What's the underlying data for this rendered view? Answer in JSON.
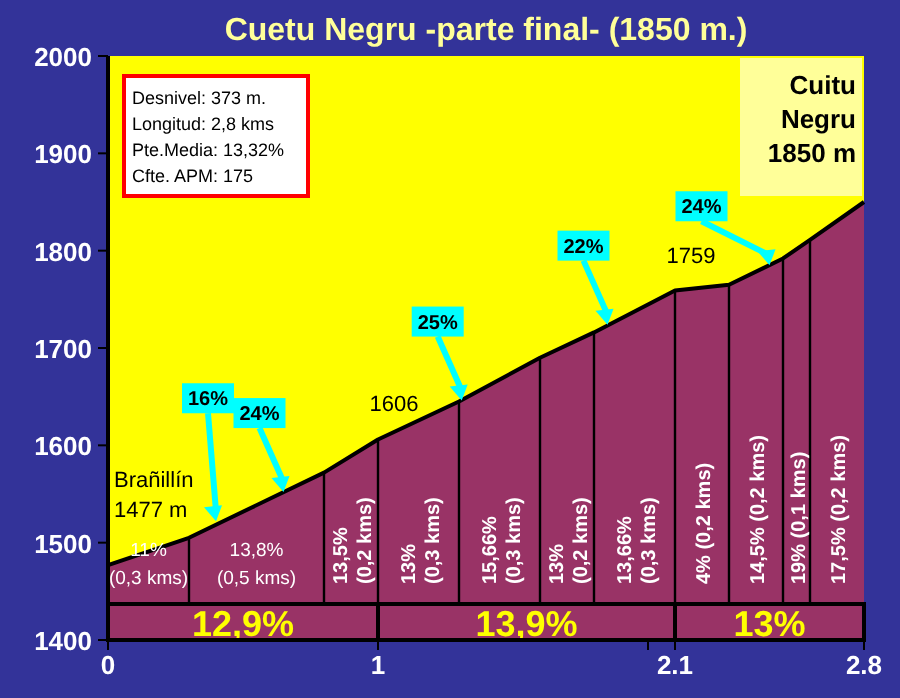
{
  "chart_data": {
    "type": "area",
    "title": "Cuetu Negru -parte final- (1850 m.)",
    "x": [
      0,
      0.3,
      0.8,
      1,
      1.3,
      1.6,
      1.8,
      2.1,
      2.3,
      2.5,
      2.6,
      2.8
    ],
    "series": [
      {
        "color": "#993366",
        "values": [
          1477,
          1505,
          1572,
          1606,
          1645,
          1690,
          1716,
          1759,
          1765,
          1792,
          1811,
          1850
        ]
      }
    ],
    "xlim": [
      0,
      2.8
    ],
    "xticks": [
      0,
      1,
      {
        "value": 2,
        "label": null
      },
      2.1,
      2.8
    ],
    "ylim": [
      1400,
      2000
    ],
    "yticks": [
      1400,
      1500,
      1600,
      1700,
      1800,
      1900,
      2000
    ],
    "grid": false,
    "ref_lines": [
      {
        "axis": "x",
        "value": 0.3
      },
      {
        "axis": "x",
        "value": 0.8
      },
      {
        "axis": "x",
        "value": 1
      },
      {
        "axis": "x",
        "value": 1.3
      },
      {
        "axis": "x",
        "value": 1.6
      },
      {
        "axis": "x",
        "value": 1.8
      },
      {
        "axis": "x",
        "value": 2.1
      },
      {
        "axis": "x",
        "value": 2.3
      },
      {
        "axis": "x",
        "value": 2.5
      },
      {
        "axis": "x",
        "value": 2.6
      }
    ],
    "bands": [
      {
        "axis": "x",
        "from": 0,
        "to": 1,
        "label": "12,9%",
        "color": "#993366"
      },
      {
        "axis": "x",
        "from": 1,
        "to": 2.1,
        "label": "13,9%",
        "color": "#993366"
      },
      {
        "axis": "x",
        "from": 2.1,
        "to": 2.8,
        "label": "13%",
        "color": "#993366"
      }
    ],
    "annotations": [
      "Desnivel: 373 m.",
      "Longitud: 2,8 kms",
      "Pte.Media: 13,32%",
      "Cfte. APM: 175",
      {
        "text": "Brañillín\n1477 m",
        "x": 0,
        "y": 1477
      },
      {
        "text": "1606",
        "x": 1,
        "y": 1606
      },
      {
        "text": "1759",
        "x": 2.1,
        "y": 1759
      },
      {
        "text": "Cuitu\nNegru\n1850 m",
        "x": 2.8,
        "y": 1850
      },
      {
        "text": "16%",
        "x": 0.4,
        "y": 1522
      },
      {
        "text": "24%",
        "x": 0.65,
        "y": 1552
      },
      {
        "text": "25%",
        "x": 1.31,
        "y": 1646
      },
      {
        "text": "22%",
        "x": 1.85,
        "y": 1724
      },
      {
        "text": "24%",
        "x": 2.45,
        "y": 1785
      },
      "11%\n(0,3 kms)",
      "13,8%\n(0,5 kms)",
      "13,5%\n(0,2 kms)",
      "13%\n(0,3 kms)",
      "15,66%\n(0,3 kms)",
      "13%\n(0,2 kms)",
      "13,66%\n(0,3 kms)",
      "4%  (0,2 kms)",
      "14,5%  (0,2 kms)",
      "19%  (0,1 kms)",
      "17,5%  (0,2 kms)"
    ]
  }
}
